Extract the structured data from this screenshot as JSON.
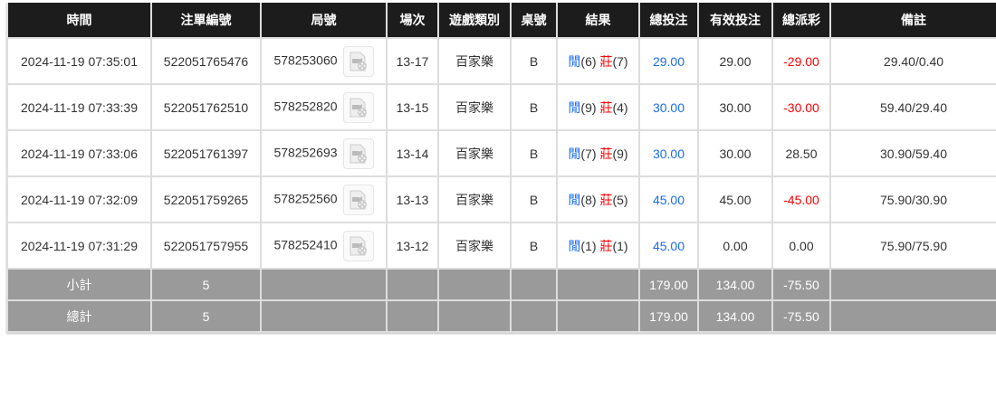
{
  "headers": [
    "時間",
    "注單編號",
    "局號",
    "場次",
    "遊戲類別",
    "桌號",
    "結果",
    "總投注",
    "有效投注",
    "總派彩",
    "備註"
  ],
  "rows": [
    {
      "time": "2024-11-19 07:35:01",
      "bet_id": "522051765476",
      "round": "578253060",
      "shoe": "13-17",
      "game": "百家樂",
      "table": "B",
      "player_label": "閒",
      "player": "(6)",
      "banker_label": "莊",
      "banker": "(7)",
      "total": "29.00",
      "valid": "29.00",
      "payout": "-29.00",
      "payout_negative": true,
      "note": "29.40/0.40"
    },
    {
      "time": "2024-11-19 07:33:39",
      "bet_id": "522051762510",
      "round": "578252820",
      "shoe": "13-15",
      "game": "百家樂",
      "table": "B",
      "player_label": "閒",
      "player": "(9)",
      "banker_label": "莊",
      "banker": "(4)",
      "total": "30.00",
      "valid": "30.00",
      "payout": "-30.00",
      "payout_negative": true,
      "note": "59.40/29.40"
    },
    {
      "time": "2024-11-19 07:33:06",
      "bet_id": "522051761397",
      "round": "578252693",
      "shoe": "13-14",
      "game": "百家樂",
      "table": "B",
      "player_label": "閒",
      "player": "(7)",
      "banker_label": "莊",
      "banker": "(9)",
      "total": "30.00",
      "valid": "30.00",
      "payout": "28.50",
      "payout_negative": false,
      "note": "30.90/59.40"
    },
    {
      "time": "2024-11-19 07:32:09",
      "bet_id": "522051759265",
      "round": "578252560",
      "shoe": "13-13",
      "game": "百家樂",
      "table": "B",
      "player_label": "閒",
      "player": "(8)",
      "banker_label": "莊",
      "banker": "(5)",
      "total": "45.00",
      "valid": "45.00",
      "payout": "-45.00",
      "payout_negative": true,
      "note": "75.90/30.90"
    },
    {
      "time": "2024-11-19 07:31:29",
      "bet_id": "522051757955",
      "round": "578252410",
      "shoe": "13-12",
      "game": "百家樂",
      "table": "B",
      "player_label": "閒",
      "player": "(1)",
      "banker_label": "莊",
      "banker": "(1)",
      "total": "45.00",
      "valid": "0.00",
      "payout": "0.00",
      "payout_negative": false,
      "note": "75.90/75.90"
    }
  ],
  "subtotal": {
    "label": "小計",
    "count": "5",
    "total": "179.00",
    "valid": "134.00",
    "payout": "-75.50"
  },
  "grandtotal": {
    "label": "總計",
    "count": "5",
    "total": "179.00",
    "valid": "134.00",
    "payout": "-75.50"
  },
  "colors": {
    "header_bg": "#1c1c1c",
    "footer_bg": "#9a9a9a",
    "blue": "#1a6cf0",
    "red": "#ff0000"
  }
}
